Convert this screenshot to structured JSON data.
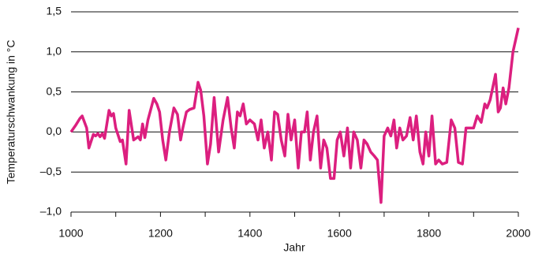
{
  "chart_data": {
    "type": "line",
    "ylabel": "Temperaturschwankung in °C",
    "xlabel": "Jahr",
    "series": [
      {
        "color": "#dc1f7f",
        "x": [
          1000,
          1010,
          1020,
          1025,
          1035,
          1040,
          1050,
          1055,
          1060,
          1065,
          1070,
          1075,
          1085,
          1090,
          1095,
          1100,
          1110,
          1115,
          1123,
          1130,
          1140,
          1150,
          1155,
          1160,
          1165,
          1172,
          1185,
          1192,
          1198,
          1205,
          1212,
          1220,
          1230,
          1238,
          1245,
          1250,
          1258,
          1265,
          1275,
          1284,
          1290,
          1297,
          1305,
          1312,
          1320,
          1330,
          1340,
          1350,
          1358,
          1365,
          1372,
          1378,
          1385,
          1392,
          1400,
          1410,
          1418,
          1425,
          1432,
          1440,
          1448,
          1455,
          1462,
          1470,
          1478,
          1485,
          1492,
          1500,
          1508,
          1515,
          1522,
          1528,
          1535,
          1542,
          1550,
          1558,
          1565,
          1572,
          1580,
          1588,
          1595,
          1602,
          1610,
          1618,
          1625,
          1632,
          1640,
          1648,
          1655,
          1662,
          1670,
          1678,
          1685,
          1693,
          1700,
          1708,
          1715,
          1722,
          1728,
          1735,
          1742,
          1750,
          1758,
          1765,
          1772,
          1780,
          1787,
          1793,
          1800,
          1807,
          1815,
          1822,
          1830,
          1840,
          1850,
          1858,
          1866,
          1875,
          1883,
          1890,
          1900,
          1908,
          1917,
          1925,
          1930,
          1937,
          1949,
          1955,
          1960,
          1966,
          1972,
          1979,
          1988,
          2000
        ],
        "values": [
          0.0,
          0.08,
          0.17,
          0.2,
          0.05,
          -0.2,
          -0.03,
          -0.05,
          -0.02,
          -0.06,
          -0.02,
          -0.08,
          0.27,
          0.2,
          0.23,
          0.05,
          -0.12,
          -0.1,
          -0.4,
          0.27,
          -0.1,
          -0.06,
          -0.1,
          0.1,
          -0.07,
          0.15,
          0.42,
          0.35,
          0.25,
          -0.1,
          -0.35,
          0.0,
          0.3,
          0.22,
          -0.1,
          0.05,
          0.25,
          0.28,
          0.3,
          0.62,
          0.52,
          0.2,
          -0.4,
          -0.15,
          0.43,
          -0.25,
          0.15,
          0.43,
          0.05,
          -0.2,
          0.25,
          0.2,
          0.35,
          0.1,
          0.15,
          0.1,
          -0.1,
          0.15,
          -0.2,
          0.0,
          -0.35,
          0.25,
          0.22,
          -0.1,
          -0.3,
          0.22,
          -0.1,
          0.15,
          -0.45,
          0.0,
          0.0,
          0.25,
          -0.35,
          0.0,
          0.2,
          -0.45,
          -0.1,
          -0.2,
          -0.58,
          -0.58,
          -0.1,
          0.0,
          -0.3,
          0.05,
          -0.45,
          0.0,
          -0.1,
          -0.45,
          -0.1,
          -0.15,
          -0.25,
          -0.3,
          -0.35,
          -0.88,
          -0.05,
          0.05,
          -0.05,
          0.15,
          -0.2,
          0.05,
          -0.1,
          -0.05,
          0.18,
          -0.1,
          0.2,
          -0.25,
          -0.4,
          0.0,
          -0.3,
          0.2,
          -0.4,
          -0.35,
          -0.4,
          -0.38,
          0.15,
          0.05,
          -0.38,
          -0.4,
          0.05,
          0.05,
          0.05,
          0.2,
          0.12,
          0.35,
          0.3,
          0.4,
          0.72,
          0.25,
          0.3,
          0.55,
          0.35,
          0.55,
          1.0,
          1.3
        ]
      }
    ],
    "xlim": [
      1000,
      2000
    ],
    "xticks": [
      1000,
      1200,
      1400,
      1600,
      1800,
      2000
    ],
    "xminorticks": [
      1100,
      1300,
      1500,
      1700,
      1900
    ],
    "ylim": [
      -1.0,
      1.5
    ],
    "yticks": [
      {
        "value": -1.0,
        "label": "–1,0"
      },
      {
        "value": -0.5,
        "label": "–0,5"
      },
      {
        "value": 0.0,
        "label": "0,0"
      },
      {
        "value": 0.5,
        "label": "0,5"
      },
      {
        "value": 1.0,
        "label": "1,0"
      },
      {
        "value": 1.5,
        "label": "1,5"
      }
    ],
    "grid": true
  }
}
